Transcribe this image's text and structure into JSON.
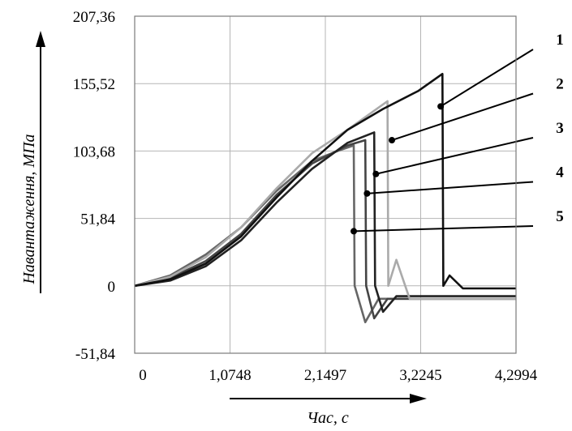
{
  "chart_data": {
    "type": "line",
    "title": "",
    "xlabel": "Час, с",
    "ylabel": "Навантаження, МПа",
    "xlim": [
      0,
      4.2994
    ],
    "ylim": [
      -51.84,
      207.36
    ],
    "x_ticks": [
      "0",
      "1,0748",
      "2,1497",
      "3,2245",
      "4,2994"
    ],
    "y_ticks": [
      "-51,84",
      "0",
      "51,84",
      "103,68",
      "155,52",
      "207,36"
    ],
    "grid": true,
    "series": [
      {
        "name": "1",
        "color": "#111111",
        "peak_time": 3.47,
        "peak_load": 163,
        "drop_time": 3.48,
        "tail_load": -2,
        "x": [
          0,
          0.4,
          0.8,
          1.2,
          1.6,
          2.0,
          2.4,
          2.8,
          3.2,
          3.47,
          3.48,
          3.55,
          3.7,
          4.3
        ],
        "y": [
          0,
          5,
          17,
          38,
          68,
          96,
          120,
          136,
          150,
          163,
          0,
          8,
          -2,
          -2
        ]
      },
      {
        "name": "2",
        "color": "#aaaaaa",
        "peak_time": 2.85,
        "peak_load": 142,
        "drop_time": 2.86,
        "tail_load": -10,
        "x": [
          0,
          0.4,
          0.8,
          1.2,
          1.6,
          2.0,
          2.4,
          2.85,
          2.86,
          2.95,
          3.1,
          4.3
        ],
        "y": [
          0,
          7,
          22,
          45,
          75,
          102,
          120,
          142,
          0,
          20,
          -10,
          -10
        ]
      },
      {
        "name": "3",
        "color": "#222222",
        "peak_time": 2.7,
        "peak_load": 118,
        "drop_time": 2.71,
        "tail_load": -8,
        "x": [
          0,
          0.4,
          0.8,
          1.2,
          1.6,
          2.0,
          2.4,
          2.7,
          2.71,
          2.8,
          2.95,
          4.3
        ],
        "y": [
          0,
          4,
          15,
          35,
          64,
          90,
          110,
          118,
          0,
          -20,
          -8,
          -8
        ]
      },
      {
        "name": "4",
        "color": "#444444",
        "peak_time": 2.6,
        "peak_load": 112,
        "drop_time": 2.61,
        "tail_load": -10,
        "x": [
          0,
          0.4,
          0.8,
          1.2,
          1.6,
          2.0,
          2.4,
          2.6,
          2.61,
          2.7,
          2.85,
          4.3
        ],
        "y": [
          0,
          6,
          19,
          40,
          70,
          94,
          108,
          112,
          0,
          -25,
          -10,
          -10
        ]
      },
      {
        "name": "5",
        "color": "#666666",
        "peak_time": 2.47,
        "peak_load": 108,
        "drop_time": 2.48,
        "tail_load": -10,
        "x": [
          0,
          0.4,
          0.8,
          1.2,
          1.6,
          2.0,
          2.3,
          2.47,
          2.48,
          2.6,
          2.75,
          4.3
        ],
        "y": [
          0,
          8,
          24,
          45,
          73,
          96,
          104,
          108,
          0,
          -28,
          -10,
          -10
        ]
      }
    ],
    "callouts": [
      {
        "label": "1",
        "point": [
          3.45,
          138
        ]
      },
      {
        "label": "2",
        "point": [
          2.9,
          112
        ]
      },
      {
        "label": "3",
        "point": [
          2.72,
          86
        ]
      },
      {
        "label": "4",
        "point": [
          2.62,
          71
        ]
      },
      {
        "label": "5",
        "point": [
          2.47,
          42
        ]
      }
    ]
  }
}
